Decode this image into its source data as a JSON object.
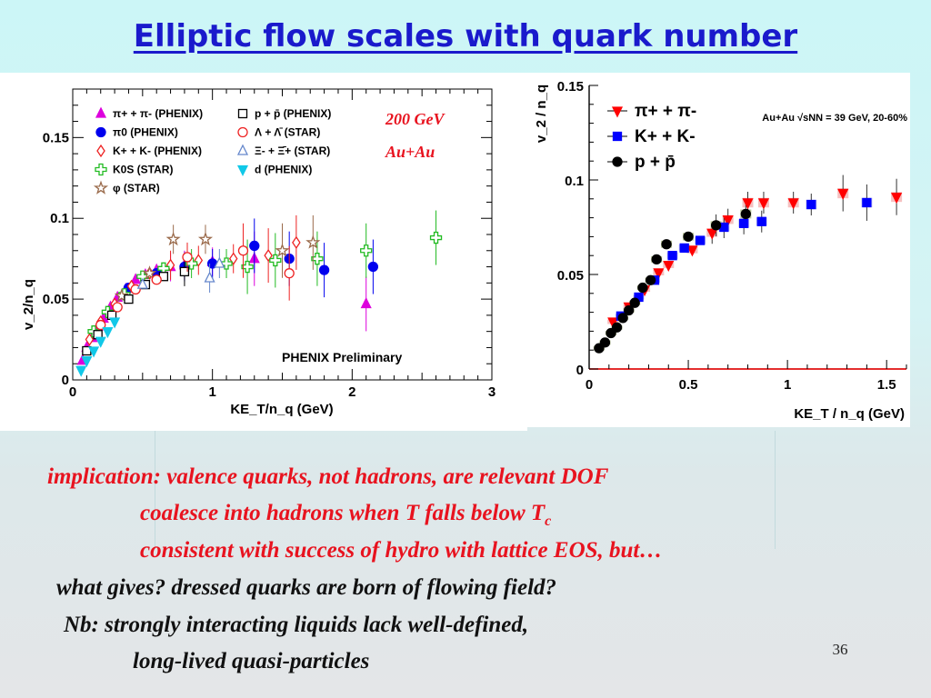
{
  "slide": {
    "title": "Elliptic flow scales with quark number",
    "page_number": "36",
    "lines": [
      "implication: valence quarks, not hadrons, are relevant DOF",
      "coalesce into hadrons when T falls below T",
      "consistent with success of hydro with lattice EOS, but…",
      "what gives? dressed quarks are born of flowing field?",
      "Nb: strongly interacting liquids lack well-defined,",
      "long-lived quasi-particles"
    ],
    "line2_subscript": "c"
  },
  "chart_data": [
    {
      "type": "scatter",
      "xlabel": "KE_T/n_q (GeV)",
      "ylabel": "v_2/n_q",
      "xlim": [
        0,
        3
      ],
      "ylim": [
        0,
        0.18
      ],
      "xticks": [
        "0",
        "1",
        "2",
        "3"
      ],
      "yticks": [
        "0",
        "0.05",
        "0.1",
        "0.15"
      ],
      "annotations": [
        "200 GeV",
        "Au+Au",
        "PHENIX Preliminary"
      ],
      "legend": [
        {
          "name": "π+ + π- (PHENIX)",
          "color": "#dd00dd",
          "marker": "triangle"
        },
        {
          "name": "π0 (PHENIX)",
          "color": "#0000ee",
          "marker": "circle"
        },
        {
          "name": "K+ + K- (PHENIX)",
          "color": "#ee2222",
          "marker": "diamond-open"
        },
        {
          "name": "K0S (STAR)",
          "color": "#22bb22",
          "marker": "cross-open"
        },
        {
          "name": "φ (STAR)",
          "color": "#9a6a4a",
          "marker": "star-open"
        },
        {
          "name": "p + p̄ (PHENIX)",
          "color": "#000000",
          "marker": "square-open"
        },
        {
          "name": "Λ + Λ̄ (STAR)",
          "color": "#ee2222",
          "marker": "circle-open"
        },
        {
          "name": "Ξ- + Ξ̄+ (STAR)",
          "color": "#6688cc",
          "marker": "triangle-open"
        },
        {
          "name": "d (PHENIX)",
          "color": "#11c8e8",
          "marker": "triangle-down"
        }
      ],
      "series": [
        {
          "name": "π+ + π- (PHENIX)",
          "points": [
            [
              0.07,
              0.012
            ],
            [
              0.1,
              0.02
            ],
            [
              0.14,
              0.026
            ],
            [
              0.18,
              0.033
            ],
            [
              0.22,
              0.038
            ],
            [
              0.27,
              0.045
            ],
            [
              0.32,
              0.051
            ],
            [
              0.38,
              0.056
            ],
            [
              0.45,
              0.062
            ],
            [
              0.52,
              0.065
            ],
            [
              0.6,
              0.068
            ],
            [
              0.7,
              0.07
            ],
            [
              0.8,
              0.071
            ],
            [
              1.0,
              0.073
            ],
            [
              1.3,
              0.075
            ],
            [
              2.1,
              0.047
            ]
          ]
        },
        {
          "name": "π0 (PHENIX)",
          "points": [
            [
              0.4,
              0.057
            ],
            [
              0.6,
              0.066
            ],
            [
              0.8,
              0.07
            ],
            [
              1.0,
              0.072
            ],
            [
              1.3,
              0.083
            ],
            [
              1.55,
              0.075
            ],
            [
              1.8,
              0.068
            ],
            [
              2.15,
              0.07
            ]
          ]
        },
        {
          "name": "K+ + K- (PHENIX)",
          "points": [
            [
              0.12,
              0.025
            ],
            [
              0.2,
              0.036
            ],
            [
              0.3,
              0.047
            ],
            [
              0.42,
              0.058
            ],
            [
              0.55,
              0.066
            ],
            [
              0.7,
              0.071
            ],
            [
              0.9,
              0.074
            ],
            [
              1.15,
              0.075
            ],
            [
              1.4,
              0.077
            ],
            [
              1.6,
              0.085
            ]
          ]
        },
        {
          "name": "K0S (STAR)",
          "points": [
            [
              0.15,
              0.03
            ],
            [
              0.25,
              0.042
            ],
            [
              0.37,
              0.053
            ],
            [
              0.5,
              0.064
            ],
            [
              0.65,
              0.069
            ],
            [
              0.85,
              0.072
            ],
            [
              1.1,
              0.072
            ],
            [
              1.25,
              0.07
            ],
            [
              1.45,
              0.074
            ],
            [
              1.75,
              0.075
            ],
            [
              2.1,
              0.08
            ],
            [
              2.6,
              0.088
            ]
          ]
        },
        {
          "name": "φ (STAR)",
          "points": [
            [
              0.35,
              0.052
            ],
            [
              0.55,
              0.066
            ],
            [
              0.72,
              0.087
            ],
            [
              0.95,
              0.087
            ],
            [
              1.5,
              0.08
            ],
            [
              1.72,
              0.085
            ]
          ]
        },
        {
          "name": "p + p̄ (PHENIX)",
          "points": [
            [
              0.1,
              0.018
            ],
            [
              0.18,
              0.028
            ],
            [
              0.28,
              0.04
            ],
            [
              0.4,
              0.05
            ],
            [
              0.52,
              0.059
            ],
            [
              0.65,
              0.064
            ],
            [
              0.8,
              0.067
            ]
          ]
        },
        {
          "name": "Λ + Λ̄ (STAR)",
          "points": [
            [
              0.2,
              0.034
            ],
            [
              0.32,
              0.045
            ],
            [
              0.45,
              0.056
            ],
            [
              0.6,
              0.062
            ],
            [
              0.82,
              0.076
            ],
            [
              1.22,
              0.08
            ],
            [
              1.55,
              0.066
            ]
          ]
        },
        {
          "name": "Ξ- + Ξ̄+ (STAR)",
          "points": [
            [
              0.5,
              0.059
            ],
            [
              0.98,
              0.063
            ],
            [
              1.05,
              0.072
            ]
          ]
        },
        {
          "name": "d (PHENIX)",
          "points": [
            [
              0.06,
              0.006
            ],
            [
              0.1,
              0.012
            ],
            [
              0.15,
              0.018
            ],
            [
              0.2,
              0.024
            ],
            [
              0.25,
              0.03
            ],
            [
              0.3,
              0.036
            ]
          ]
        }
      ],
      "grid": false,
      "legend_position": "top-left"
    },
    {
      "type": "scatter",
      "xlabel": "KE_T / n_q (GeV)",
      "ylabel": "v_2 / n_q",
      "xlim": [
        0,
        1.6
      ],
      "ylim": [
        0,
        0.15
      ],
      "xticks": [
        "0",
        "0.5",
        "1",
        "1.5"
      ],
      "yticks": [
        "0",
        "0.05",
        "0.1",
        "0.15"
      ],
      "annotation": "Au+Au √sNN = 39 GeV, 20-60%",
      "series": [
        {
          "name": "π+ + π-",
          "color": "#ff0000",
          "marker": "triangle-down",
          "points": [
            [
              0.12,
              0.025
            ],
            [
              0.2,
              0.033
            ],
            [
              0.28,
              0.042
            ],
            [
              0.35,
              0.051
            ],
            [
              0.4,
              0.055
            ],
            [
              0.52,
              0.063
            ],
            [
              0.62,
              0.072
            ],
            [
              0.7,
              0.079
            ],
            [
              0.8,
              0.088
            ],
            [
              0.88,
              0.088
            ],
            [
              1.03,
              0.088
            ],
            [
              1.28,
              0.093
            ],
            [
              1.55,
              0.091
            ]
          ]
        },
        {
          "name": "K+ + K-",
          "color": "#0000ff",
          "marker": "square",
          "points": [
            [
              0.16,
              0.028
            ],
            [
              0.25,
              0.038
            ],
            [
              0.33,
              0.047
            ],
            [
              0.42,
              0.06
            ],
            [
              0.48,
              0.064
            ],
            [
              0.56,
              0.068
            ],
            [
              0.68,
              0.075
            ],
            [
              0.78,
              0.077
            ],
            [
              0.87,
              0.078
            ],
            [
              1.12,
              0.087
            ],
            [
              1.4,
              0.088
            ]
          ]
        },
        {
          "name": "p + p̄",
          "color": "#000000",
          "marker": "circle",
          "points": [
            [
              0.05,
              0.011
            ],
            [
              0.08,
              0.014
            ],
            [
              0.11,
              0.019
            ],
            [
              0.14,
              0.022
            ],
            [
              0.17,
              0.027
            ],
            [
              0.2,
              0.031
            ],
            [
              0.23,
              0.035
            ],
            [
              0.27,
              0.043
            ],
            [
              0.31,
              0.047
            ],
            [
              0.34,
              0.058
            ],
            [
              0.39,
              0.066
            ],
            [
              0.5,
              0.07
            ],
            [
              0.64,
              0.076
            ],
            [
              0.79,
              0.082
            ]
          ]
        }
      ],
      "grid": false,
      "legend_position": "top-left"
    }
  ]
}
